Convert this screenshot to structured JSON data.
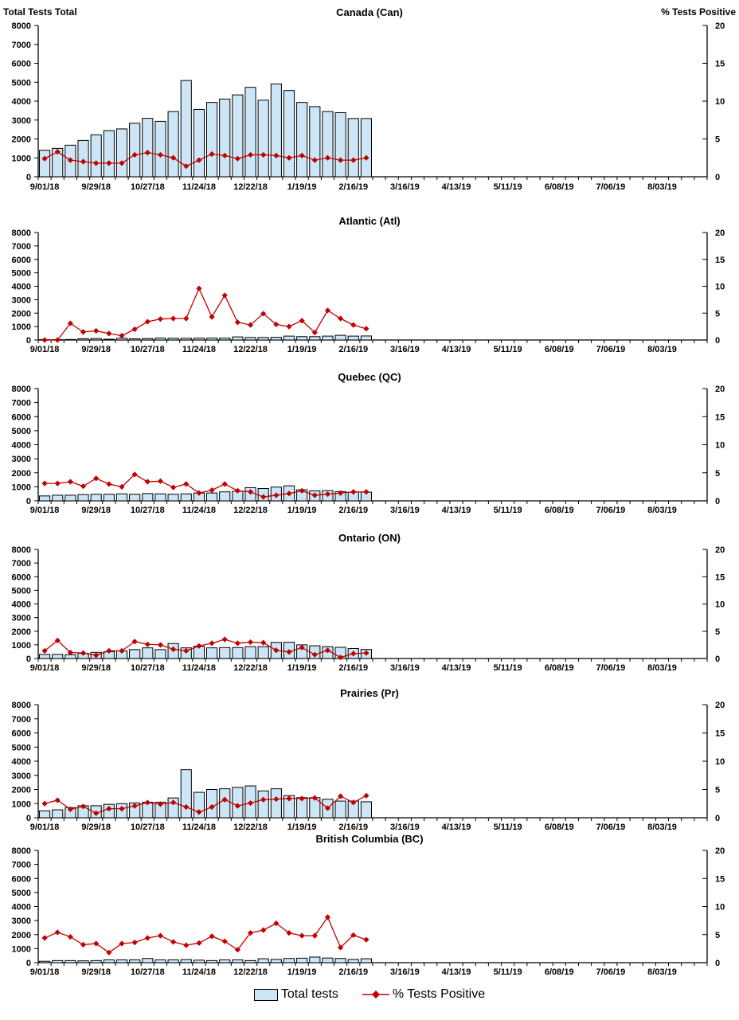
{
  "header": {
    "left_label": "Total Tests Total",
    "right_label": "% Tests Positive"
  },
  "legend": {
    "total_tests_label": "Total tests",
    "pct_positive_label": "% Tests Positive"
  },
  "colors": {
    "bar_fill": "#CDE6F7",
    "bar_border": "#000000",
    "line_color": "#C00000"
  },
  "axes": {
    "left_axis_max": 8000,
    "left_tick_step": 1000,
    "right_axis_max": 20,
    "right_ticks": [
      0,
      5,
      10,
      15,
      20
    ],
    "total_weeks": 52,
    "x_axis_labels": [
      "9/01/18",
      "9/29/18",
      "10/27/18",
      "11/24/18",
      "12/22/18",
      "1/19/19",
      "2/16/19",
      "3/16/19",
      "4/13/19",
      "5/11/19",
      "6/08/19",
      "7/06/19",
      "8/03/19"
    ]
  },
  "chart_data": [
    {
      "type": "combo-bar-line",
      "title": "Canada (Can)",
      "bar_series_name": "Total tests",
      "line_series_name": "% Tests Positive",
      "ylabel_left": "Total Tests",
      "ylabel_right": "% Tests Positive",
      "ylim_left": [
        0,
        8000
      ],
      "ylim_right": [
        0,
        20
      ],
      "categories": [
        "9/01/18",
        "9/08/18",
        "9/15/18",
        "9/22/18",
        "9/29/18",
        "10/06/18",
        "10/13/18",
        "10/20/18",
        "10/27/18",
        "11/03/18",
        "11/10/18",
        "11/17/18",
        "11/24/18",
        "12/01/18",
        "12/08/18",
        "12/15/18",
        "12/22/18",
        "12/29/18",
        "1/05/19",
        "1/12/19",
        "1/19/19",
        "1/26/19",
        "2/02/19",
        "2/09/19",
        "2/16/19",
        "2/23/19"
      ],
      "total_tests": [
        1400,
        1500,
        1670,
        1920,
        2220,
        2440,
        2530,
        2830,
        3090,
        2930,
        3450,
        5090,
        3560,
        3930,
        4110,
        4330,
        4730,
        4050,
        4910,
        4560,
        3930,
        3710,
        3450,
        3390,
        3080,
        3080
      ],
      "pct_positive": [
        2.4,
        3.3,
        2.2,
        2.0,
        1.8,
        1.8,
        1.8,
        2.9,
        3.2,
        2.9,
        2.5,
        1.4,
        2.2,
        3.0,
        2.8,
        2.4,
        2.9,
        2.9,
        2.8,
        2.5,
        2.8,
        2.2,
        2.5,
        2.2,
        2.2,
        2.5
      ]
    },
    {
      "type": "combo-bar-line",
      "title": "Atlantic (Atl)",
      "bar_series_name": "Total tests",
      "line_series_name": "% Tests Positive",
      "ylim_left": [
        0,
        8000
      ],
      "ylim_right": [
        0,
        20
      ],
      "categories": [
        "9/01/18",
        "9/08/18",
        "9/15/18",
        "9/22/18",
        "9/29/18",
        "10/06/18",
        "10/13/18",
        "10/20/18",
        "10/27/18",
        "11/03/18",
        "11/10/18",
        "11/17/18",
        "11/24/18",
        "12/01/18",
        "12/08/18",
        "12/15/18",
        "12/22/18",
        "12/29/18",
        "1/05/19",
        "1/12/19",
        "1/19/19",
        "1/26/19",
        "2/02/19",
        "2/09/19",
        "2/16/19",
        "2/23/19"
      ],
      "total_tests": [
        30,
        30,
        40,
        100,
        110,
        60,
        130,
        90,
        110,
        150,
        130,
        130,
        140,
        150,
        140,
        230,
        190,
        190,
        200,
        290,
        250,
        250,
        290,
        350,
        290,
        300
      ],
      "pct_positive": [
        0,
        0,
        3.1,
        1.5,
        1.7,
        1.2,
        0.8,
        2.0,
        3.4,
        3.9,
        4.0,
        4.0,
        9.6,
        4.3,
        8.3,
        3.3,
        2.8,
        4.9,
        2.9,
        2.5,
        3.6,
        1.4,
        5.5,
        4.0,
        2.8,
        2.1
      ]
    },
    {
      "type": "combo-bar-line",
      "title": "Quebec (QC)",
      "bar_series_name": "Total tests",
      "line_series_name": "% Tests Positive",
      "ylim_left": [
        0,
        8000
      ],
      "ylim_right": [
        0,
        20
      ],
      "categories": [
        "9/01/18",
        "9/08/18",
        "9/15/18",
        "9/22/18",
        "9/29/18",
        "10/06/18",
        "10/13/18",
        "10/20/18",
        "10/27/18",
        "11/03/18",
        "11/10/18",
        "11/17/18",
        "11/24/18",
        "12/01/18",
        "12/08/18",
        "12/15/18",
        "12/22/18",
        "12/29/18",
        "1/05/19",
        "1/12/19",
        "1/19/19",
        "1/26/19",
        "2/02/19",
        "2/09/19",
        "2/16/19",
        "2/23/19"
      ],
      "total_tests": [
        350,
        400,
        400,
        450,
        470,
        470,
        500,
        470,
        520,
        500,
        470,
        500,
        560,
        560,
        640,
        680,
        940,
        880,
        980,
        1070,
        790,
        710,
        730,
        660,
        620,
        620
      ],
      "pct_positive": [
        3.1,
        3.1,
        3.4,
        2.6,
        4.0,
        3.0,
        2.5,
        4.7,
        3.4,
        3.5,
        2.4,
        3.0,
        1.4,
        1.9,
        3.0,
        1.8,
        1.6,
        0.7,
        1.0,
        1.3,
        1.8,
        1.0,
        1.2,
        1.4,
        1.6,
        1.6
      ]
    },
    {
      "type": "combo-bar-line",
      "title": "Ontario (ON)",
      "bar_series_name": "Total tests",
      "line_series_name": "% Tests Positive",
      "ylim_left": [
        0,
        8000
      ],
      "ylim_right": [
        0,
        20
      ],
      "categories": [
        "9/01/18",
        "9/08/18",
        "9/15/18",
        "9/22/18",
        "9/29/18",
        "10/06/18",
        "10/13/18",
        "10/20/18",
        "10/27/18",
        "11/03/18",
        "11/10/18",
        "11/17/18",
        "11/24/18",
        "12/01/18",
        "12/08/18",
        "12/15/18",
        "12/22/18",
        "12/29/18",
        "1/05/19",
        "1/12/19",
        "1/19/19",
        "1/26/19",
        "2/02/19",
        "2/09/19",
        "2/16/19",
        "2/23/19"
      ],
      "total_tests": [
        300,
        300,
        280,
        380,
        450,
        500,
        560,
        650,
        780,
        650,
        1100,
        780,
        900,
        780,
        800,
        800,
        870,
        870,
        1180,
        1190,
        1000,
        930,
        870,
        820,
        730,
        660
      ],
      "pct_positive": [
        1.4,
        3.3,
        1.1,
        1.0,
        0.6,
        1.4,
        1.4,
        3.1,
        2.6,
        2.5,
        1.7,
        1.4,
        2.3,
        2.8,
        3.5,
        2.8,
        3.0,
        2.9,
        1.5,
        1.2,
        2.0,
        0.7,
        1.5,
        0.2,
        0.9,
        1.0
      ]
    },
    {
      "type": "combo-bar-line",
      "title": "Prairies (Pr)",
      "bar_series_name": "Total tests",
      "line_series_name": "% Tests Positive",
      "ylim_left": [
        0,
        8000
      ],
      "ylim_right": [
        0,
        20
      ],
      "categories": [
        "9/01/18",
        "9/08/18",
        "9/15/18",
        "9/22/18",
        "9/29/18",
        "10/06/18",
        "10/13/18",
        "10/20/18",
        "10/27/18",
        "11/03/18",
        "11/10/18",
        "11/17/18",
        "11/24/18",
        "12/01/18",
        "12/08/18",
        "12/15/18",
        "12/22/18",
        "12/29/18",
        "1/05/19",
        "1/12/19",
        "1/19/19",
        "1/26/19",
        "2/02/19",
        "2/09/19",
        "2/16/19",
        "2/23/19"
      ],
      "total_tests": [
        490,
        560,
        720,
        850,
        850,
        950,
        1000,
        1050,
        1100,
        1100,
        1400,
        3400,
        1800,
        2000,
        2050,
        2150,
        2250,
        1900,
        2050,
        1570,
        1420,
        1420,
        1310,
        1180,
        1180,
        1130
      ],
      "pct_positive": [
        2.5,
        3.1,
        1.5,
        2.0,
        0.8,
        1.6,
        1.6,
        2.1,
        2.7,
        2.4,
        2.7,
        1.9,
        1.0,
        1.9,
        3.2,
        2.1,
        2.6,
        3.2,
        3.3,
        3.4,
        3.4,
        3.5,
        1.7,
        3.8,
        2.7,
        3.9
      ]
    },
    {
      "type": "combo-bar-line",
      "title": "British Columbia (BC)",
      "bar_series_name": "Total tests",
      "line_series_name": "% Tests Positive",
      "ylim_left": [
        0,
        8000
      ],
      "ylim_right": [
        0,
        20
      ],
      "categories": [
        "9/01/18",
        "9/08/18",
        "9/15/18",
        "9/22/18",
        "9/29/18",
        "10/06/18",
        "10/13/18",
        "10/20/18",
        "10/27/18",
        "11/03/18",
        "11/10/18",
        "11/17/18",
        "11/24/18",
        "12/01/18",
        "12/08/18",
        "12/15/18",
        "12/22/18",
        "12/29/18",
        "1/05/19",
        "1/12/19",
        "1/19/19",
        "1/26/19",
        "2/02/19",
        "2/09/19",
        "2/16/19",
        "2/23/19"
      ],
      "total_tests": [
        100,
        150,
        150,
        130,
        150,
        200,
        200,
        200,
        300,
        200,
        200,
        220,
        180,
        150,
        200,
        200,
        150,
        280,
        230,
        300,
        320,
        400,
        330,
        300,
        230,
        280
      ],
      "pct_positive": [
        4.4,
        5.4,
        4.6,
        3.2,
        3.4,
        1.8,
        3.4,
        3.6,
        4.4,
        4.8,
        3.7,
        3.1,
        3.5,
        4.7,
        3.8,
        2.3,
        5.3,
        5.8,
        7.0,
        5.3,
        4.8,
        4.8,
        8.1,
        2.7,
        4.9,
        4.1
      ]
    }
  ]
}
